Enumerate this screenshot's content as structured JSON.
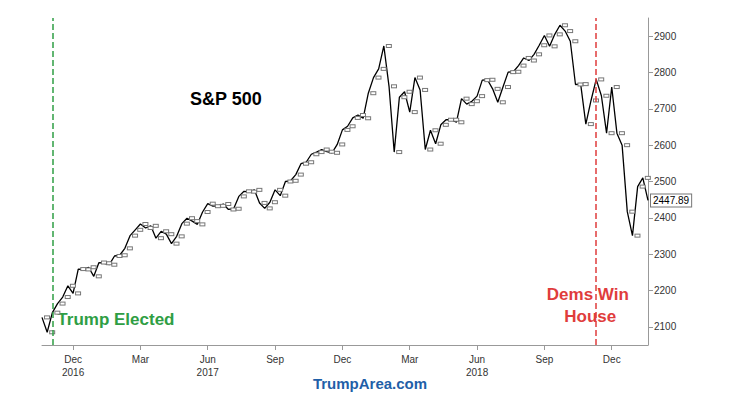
{
  "chart_data": {
    "type": "line",
    "title": "S&P 500",
    "footer": "TrumpArea.com",
    "categories": [
      null,
      null,
      null,
      null,
      null,
      null,
      "Dec 2016",
      null,
      null,
      null,
      null,
      null,
      null,
      null,
      null,
      null,
      null,
      null,
      null,
      "Mar",
      null,
      null,
      null,
      null,
      null,
      null,
      null,
      null,
      null,
      null,
      null,
      null,
      "Jun 2017",
      null,
      null,
      null,
      null,
      null,
      null,
      null,
      null,
      null,
      null,
      null,
      null,
      "Sep",
      null,
      null,
      null,
      null,
      null,
      null,
      null,
      null,
      null,
      null,
      null,
      null,
      "Dec",
      null,
      null,
      null,
      null,
      null,
      null,
      null,
      null,
      null,
      null,
      null,
      null,
      "Mar",
      null,
      null,
      null,
      null,
      null,
      null,
      null,
      null,
      null,
      null,
      null,
      null,
      "Jun 2018",
      null,
      null,
      null,
      null,
      null,
      null,
      null,
      null,
      null,
      null,
      null,
      null,
      "Sep",
      null,
      null,
      null,
      null,
      null,
      null,
      null,
      null,
      null,
      null,
      null,
      null,
      "Dec",
      null,
      null,
      null,
      null,
      null,
      null,
      null
    ],
    "values": [
      2126,
      2085,
      2139,
      2164,
      2182,
      2213,
      2192,
      2259,
      2258,
      2264,
      2239,
      2277,
      2275,
      2271,
      2295,
      2297,
      2316,
      2351,
      2367,
      2383,
      2372,
      2378,
      2344,
      2363,
      2355,
      2329,
      2349,
      2384,
      2399,
      2391,
      2382,
      2416,
      2439,
      2432,
      2433,
      2438,
      2423,
      2425,
      2459,
      2473,
      2472,
      2477,
      2441,
      2426,
      2443,
      2477,
      2461,
      2500,
      2502,
      2519,
      2549,
      2553,
      2575,
      2581,
      2588,
      2582,
      2579,
      2602,
      2642,
      2652,
      2675,
      2683,
      2674,
      2743,
      2786,
      2810,
      2873,
      2762,
      2581,
      2732,
      2747,
      2691,
      2786,
      2752,
      2588,
      2641,
      2604,
      2656,
      2670,
      2670,
      2663,
      2728,
      2713,
      2721,
      2735,
      2779,
      2780,
      2755,
      2718,
      2760,
      2801,
      2802,
      2819,
      2840,
      2833,
      2850,
      2875,
      2902,
      2872,
      2905,
      2930,
      2914,
      2886,
      2767,
      2768,
      2658,
      2723,
      2781,
      2736,
      2633,
      2760,
      2633,
      2600,
      2417,
      2351,
      2486,
      2510,
      2447.89
    ],
    "value_labels": [
      null,
      null,
      null,
      null,
      null,
      null,
      null,
      null,
      null,
      null,
      null,
      null,
      null,
      null,
      null,
      null,
      null,
      null,
      null,
      null,
      null,
      null,
      null,
      null,
      null,
      null,
      null,
      null,
      null,
      null,
      null,
      null,
      null,
      null,
      null,
      null,
      null,
      null,
      null,
      null,
      null,
      null,
      null,
      null,
      null,
      null,
      null,
      null,
      null,
      null,
      null,
      null,
      null,
      null,
      null,
      null,
      null,
      null,
      null,
      null,
      null,
      null,
      null,
      null,
      null,
      null,
      null,
      null,
      null,
      null,
      null,
      null,
      null,
      null,
      null,
      null,
      null,
      null,
      null,
      null,
      null,
      null,
      null,
      null,
      null,
      null,
      null,
      null,
      null,
      null,
      null,
      null,
      null,
      null,
      null,
      null,
      null,
      null,
      null,
      null,
      null,
      null,
      null,
      null,
      null,
      null,
      null,
      null,
      null,
      null,
      null,
      null,
      null,
      null,
      null,
      null,
      null,
      "2447.89"
    ],
    "color": "#000000",
    "ylim": [
      2050,
      2950
    ],
    "yticks": [
      2100,
      2200,
      2300,
      2400,
      2500,
      2600,
      2700,
      2800,
      2900
    ],
    "grid": false,
    "annotations": [
      {
        "text": "Trump Elected",
        "color": "#2f9e44",
        "x": 2
      },
      {
        "text": "Dems Win House",
        "color": "#e03c3c",
        "x": 107
      }
    ]
  }
}
